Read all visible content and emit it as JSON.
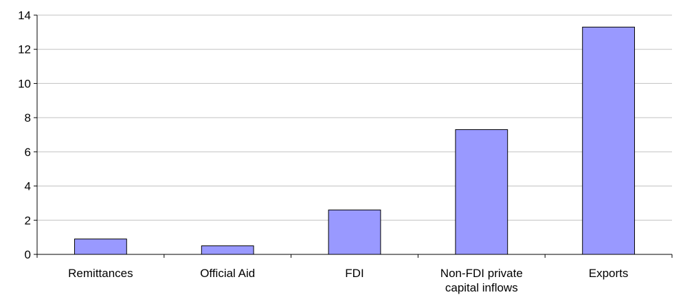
{
  "chart_data": {
    "type": "bar",
    "categories": [
      [
        "Remittances"
      ],
      [
        "Official Aid"
      ],
      [
        "FDI"
      ],
      [
        "Non-FDI private",
        "capital inflows"
      ],
      [
        "Exports"
      ]
    ],
    "values": [
      0.9,
      0.5,
      2.6,
      7.3,
      13.3
    ],
    "ylim": [
      0,
      14
    ],
    "yticks": [
      0,
      2,
      4,
      6,
      8,
      10,
      12,
      14
    ],
    "grid": true,
    "bar_color": "#9999ff",
    "bar_edge_color": "#000000",
    "grid_color": "#c0c0c0"
  }
}
